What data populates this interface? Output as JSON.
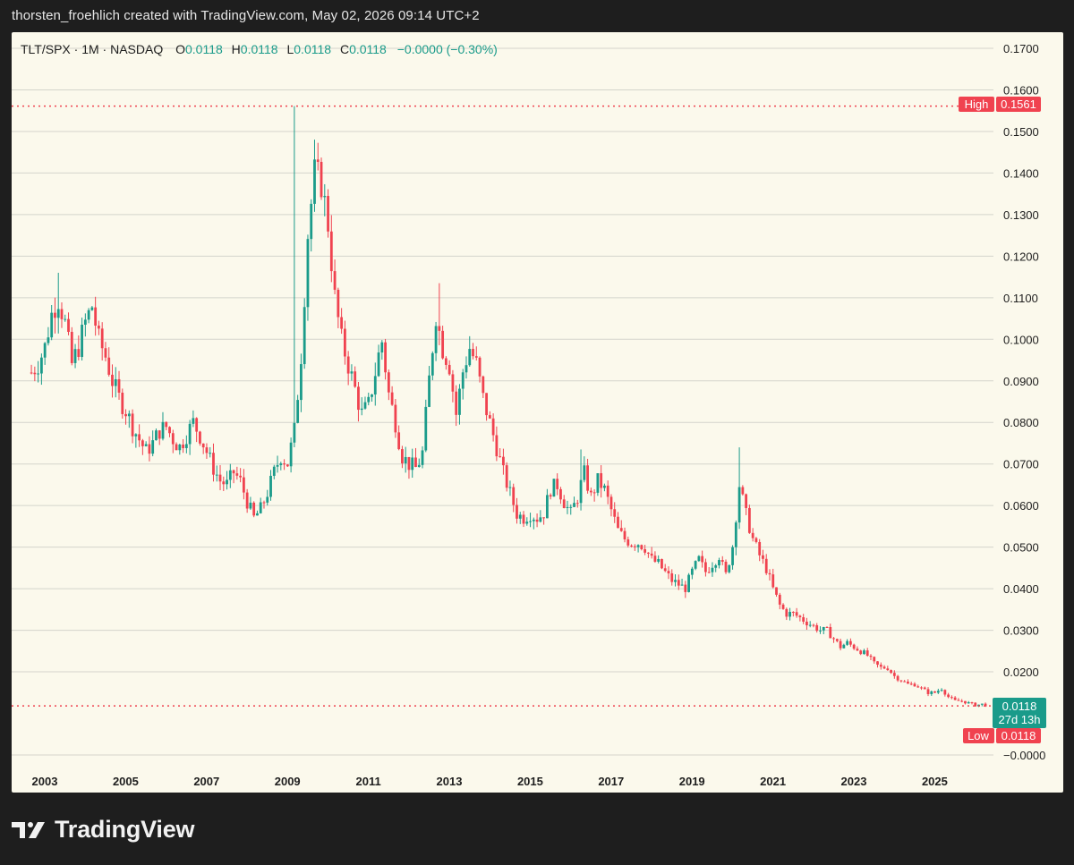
{
  "header": {
    "attribution": "thorsten_froehlich created with TradingView.com, May 02, 2026 09:14 UTC+2"
  },
  "legend": {
    "symbol": "TLT/SPX · 1M · NASDAQ",
    "o_label": "O",
    "o_value": "0.0118",
    "h_label": "H",
    "h_value": "0.0118",
    "l_label": "L",
    "l_value": "0.0118",
    "c_label": "C",
    "c_value": "0.0118",
    "change": "−0.0000 (−0.30%)"
  },
  "markers": {
    "high_label": "High",
    "high_value": "0.1561",
    "last_value": "0.0118",
    "countdown": "27d 13h",
    "low_label": "Low",
    "low_value": "0.0118"
  },
  "colors": {
    "up": "#1a9b8a",
    "down": "#f0424f",
    "grid": "#d4d4cc",
    "background": "#fbf9ec",
    "text": "#1e1e1e"
  },
  "footer": {
    "brand": "TradingView",
    "logo_icon": "tradingview-logo-icon"
  },
  "chart_data": {
    "type": "candlestick",
    "timeframe": "1M",
    "y_tick_labels": [
      "0.1700",
      "0.1600",
      "0.1500",
      "0.1400",
      "0.1300",
      "0.1200",
      "0.1100",
      "0.1000",
      "0.0900",
      "0.0800",
      "0.0700",
      "0.0600",
      "0.0500",
      "0.0400",
      "0.0300",
      "0.0200",
      "−0.0000"
    ],
    "y_ticks": [
      0.17,
      0.16,
      0.15,
      0.14,
      0.13,
      0.12,
      0.11,
      0.1,
      0.09,
      0.08,
      0.07,
      0.06,
      0.05,
      0.04,
      0.03,
      0.02,
      0.0
    ],
    "ylim": [
      0.0,
      0.17
    ],
    "x_tick_labels": [
      "2003",
      "2005",
      "2007",
      "2009",
      "2011",
      "2013",
      "2015",
      "2017",
      "2019",
      "2021",
      "2023",
      "2025"
    ],
    "x_ticks": [
      2003,
      2005,
      2007,
      2009,
      2011,
      2013,
      2015,
      2017,
      2019,
      2021,
      2023,
      2025
    ],
    "xlim": [
      2002.6,
      2026.6
    ],
    "high": 0.1561,
    "low": 0.0118,
    "last": 0.0118,
    "approx_close_path": [
      [
        2002.67,
        0.092
      ],
      [
        2002.83,
        0.094
      ],
      [
        2003.0,
        0.098
      ],
      [
        2003.17,
        0.106
      ],
      [
        2003.33,
        0.11
      ],
      [
        2003.5,
        0.104
      ],
      [
        2003.67,
        0.094
      ],
      [
        2003.83,
        0.098
      ],
      [
        2004.0,
        0.104
      ],
      [
        2004.17,
        0.108
      ],
      [
        2004.33,
        0.1
      ],
      [
        2004.5,
        0.096
      ],
      [
        2004.67,
        0.09
      ],
      [
        2004.83,
        0.086
      ],
      [
        2005.0,
        0.083
      ],
      [
        2005.17,
        0.079
      ],
      [
        2005.33,
        0.076
      ],
      [
        2005.5,
        0.073
      ],
      [
        2005.67,
        0.075
      ],
      [
        2005.83,
        0.078
      ],
      [
        2006.0,
        0.079
      ],
      [
        2006.17,
        0.076
      ],
      [
        2006.33,
        0.074
      ],
      [
        2006.5,
        0.077
      ],
      [
        2006.67,
        0.08
      ],
      [
        2006.83,
        0.077
      ],
      [
        2007.0,
        0.073
      ],
      [
        2007.17,
        0.069
      ],
      [
        2007.33,
        0.066
      ],
      [
        2007.5,
        0.065
      ],
      [
        2007.67,
        0.068
      ],
      [
        2007.83,
        0.066
      ],
      [
        2008.0,
        0.061
      ],
      [
        2008.17,
        0.057
      ],
      [
        2008.33,
        0.059
      ],
      [
        2008.5,
        0.063
      ],
      [
        2008.67,
        0.068
      ],
      [
        2008.83,
        0.072
      ],
      [
        2009.0,
        0.07
      ],
      [
        2009.17,
        0.078
      ],
      [
        2009.33,
        0.095
      ],
      [
        2009.5,
        0.125
      ],
      [
        2009.67,
        0.14
      ],
      [
        2009.83,
        0.138
      ],
      [
        2010.0,
        0.128
      ],
      [
        2010.17,
        0.11
      ],
      [
        2010.33,
        0.1
      ],
      [
        2010.5,
        0.094
      ],
      [
        2010.67,
        0.088
      ],
      [
        2010.83,
        0.082
      ],
      [
        2011.0,
        0.084
      ],
      [
        2011.17,
        0.092
      ],
      [
        2011.33,
        0.1
      ],
      [
        2011.5,
        0.087
      ],
      [
        2011.67,
        0.08
      ],
      [
        2011.83,
        0.072
      ],
      [
        2012.0,
        0.07
      ],
      [
        2012.17,
        0.069
      ],
      [
        2012.33,
        0.072
      ],
      [
        2012.5,
        0.09
      ],
      [
        2012.67,
        0.106
      ],
      [
        2012.83,
        0.098
      ],
      [
        2013.0,
        0.094
      ],
      [
        2013.17,
        0.082
      ],
      [
        2013.33,
        0.092
      ],
      [
        2013.5,
        0.098
      ],
      [
        2013.67,
        0.094
      ],
      [
        2013.83,
        0.086
      ],
      [
        2014.0,
        0.08
      ],
      [
        2014.17,
        0.074
      ],
      [
        2014.33,
        0.068
      ],
      [
        2014.5,
        0.063
      ],
      [
        2014.67,
        0.058
      ],
      [
        2014.83,
        0.057
      ],
      [
        2015.0,
        0.058
      ],
      [
        2015.17,
        0.057
      ],
      [
        2015.33,
        0.058
      ],
      [
        2015.5,
        0.064
      ],
      [
        2015.67,
        0.065
      ],
      [
        2015.83,
        0.061
      ],
      [
        2016.0,
        0.058
      ],
      [
        2016.17,
        0.062
      ],
      [
        2016.33,
        0.068
      ],
      [
        2016.5,
        0.062
      ],
      [
        2016.67,
        0.066
      ],
      [
        2016.83,
        0.064
      ],
      [
        2017.0,
        0.059
      ],
      [
        2017.17,
        0.054
      ],
      [
        2017.33,
        0.052
      ],
      [
        2017.5,
        0.051
      ],
      [
        2017.67,
        0.051
      ],
      [
        2017.83,
        0.05
      ],
      [
        2018.0,
        0.047
      ],
      [
        2018.17,
        0.046
      ],
      [
        2018.33,
        0.044
      ],
      [
        2018.5,
        0.042
      ],
      [
        2018.67,
        0.041
      ],
      [
        2018.83,
        0.04
      ],
      [
        2019.0,
        0.044
      ],
      [
        2019.17,
        0.047
      ],
      [
        2019.33,
        0.044
      ],
      [
        2019.5,
        0.046
      ],
      [
        2019.67,
        0.048
      ],
      [
        2019.83,
        0.043
      ],
      [
        2020.0,
        0.05
      ],
      [
        2020.17,
        0.065
      ],
      [
        2020.33,
        0.058
      ],
      [
        2020.5,
        0.052
      ],
      [
        2020.67,
        0.048
      ],
      [
        2020.83,
        0.045
      ],
      [
        2021.0,
        0.04
      ],
      [
        2021.17,
        0.036
      ],
      [
        2021.33,
        0.034
      ],
      [
        2021.5,
        0.034
      ],
      [
        2021.67,
        0.033
      ],
      [
        2021.83,
        0.032
      ],
      [
        2022.0,
        0.031
      ],
      [
        2022.17,
        0.03
      ],
      [
        2022.33,
        0.03
      ],
      [
        2022.5,
        0.028
      ],
      [
        2022.67,
        0.026
      ],
      [
        2022.83,
        0.027
      ],
      [
        2023.0,
        0.026
      ],
      [
        2023.17,
        0.025
      ],
      [
        2023.33,
        0.024
      ],
      [
        2023.5,
        0.022
      ],
      [
        2023.67,
        0.021
      ],
      [
        2023.83,
        0.021
      ],
      [
        2024.0,
        0.019
      ],
      [
        2024.17,
        0.018
      ],
      [
        2024.33,
        0.017
      ],
      [
        2024.5,
        0.017
      ],
      [
        2024.67,
        0.016
      ],
      [
        2024.83,
        0.015
      ],
      [
        2025.0,
        0.015
      ],
      [
        2025.17,
        0.016
      ],
      [
        2025.33,
        0.014
      ],
      [
        2025.5,
        0.013
      ],
      [
        2025.67,
        0.013
      ],
      [
        2025.83,
        0.0125
      ],
      [
        2026.0,
        0.012
      ],
      [
        2026.17,
        0.0122
      ],
      [
        2026.33,
        0.0118
      ]
    ],
    "spikes": [
      {
        "x": 2009.17,
        "high": 0.1561
      },
      {
        "x": 2012.75,
        "high": 0.1135
      },
      {
        "x": 2003.33,
        "high": 0.116
      },
      {
        "x": 2020.17,
        "high": 0.074
      },
      {
        "x": 2016.25,
        "high": 0.0735
      }
    ]
  }
}
